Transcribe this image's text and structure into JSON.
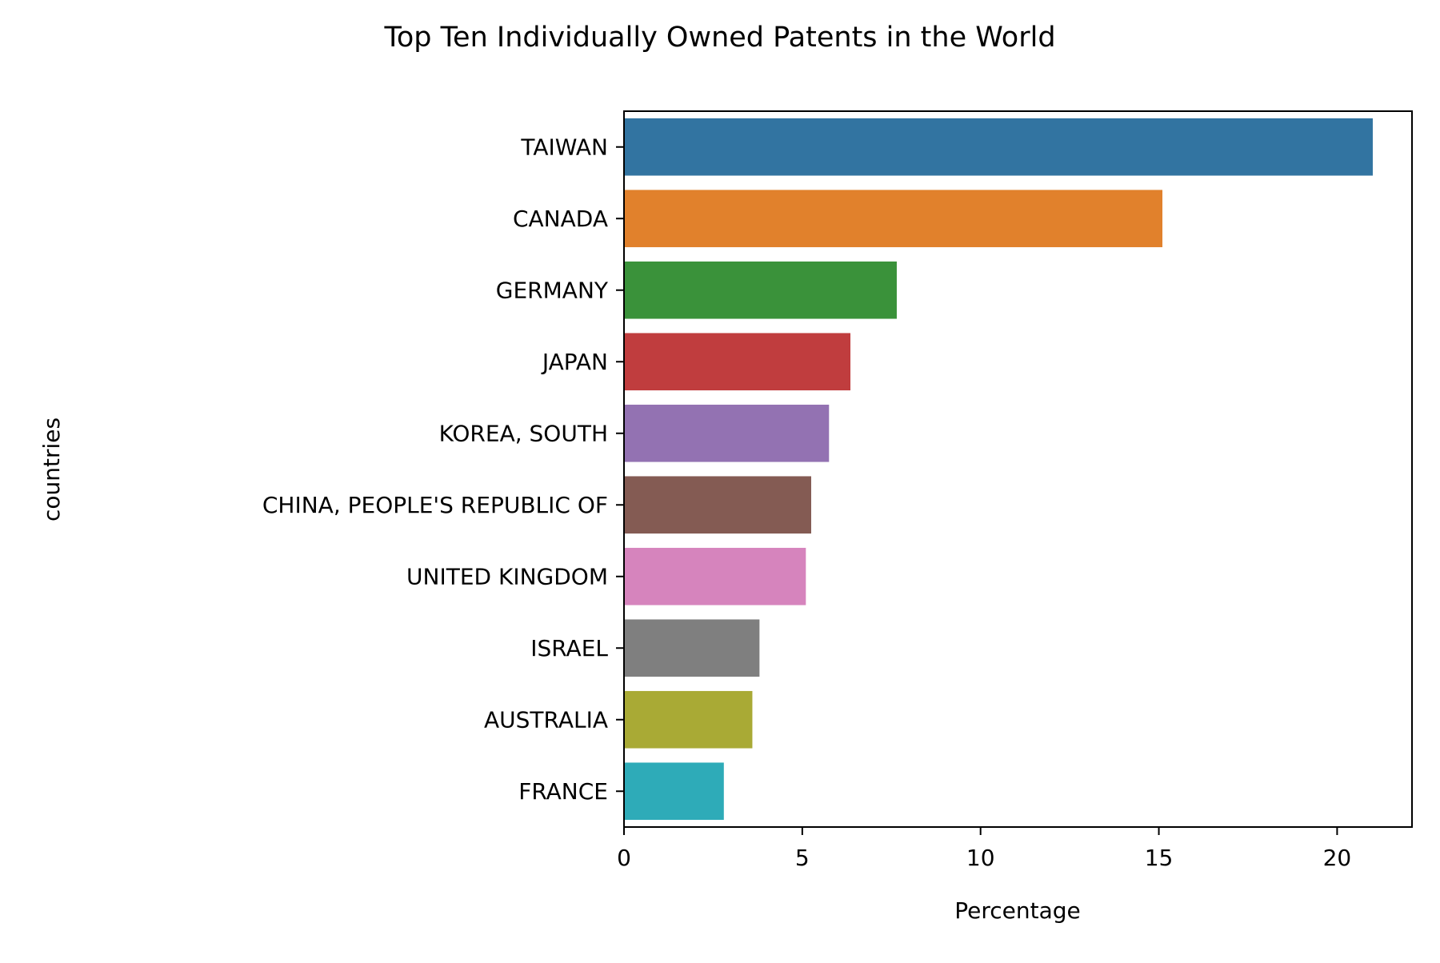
{
  "chart_data": {
    "type": "bar",
    "orientation": "horizontal",
    "title": "Top Ten Individually Owned Patents in the World",
    "xlabel": "Percentage",
    "ylabel": "countries",
    "xlim": [
      0,
      22.1
    ],
    "xticks": [
      0,
      5,
      10,
      15,
      20
    ],
    "grid": false,
    "legend": "none",
    "categories": [
      "TAIWAN",
      "CANADA",
      "GERMANY",
      "JAPAN",
      "KOREA, SOUTH",
      "CHINA, PEOPLE'S REPUBLIC OF",
      "UNITED KINGDOM",
      "ISRAEL",
      "AUSTRALIA",
      "FRANCE"
    ],
    "values": [
      21.0,
      15.1,
      7.65,
      6.35,
      5.75,
      5.25,
      5.1,
      3.8,
      3.6,
      2.8
    ],
    "colors": [
      "#3274a1",
      "#e1812c",
      "#3a923a",
      "#c03d3e",
      "#9372b2",
      "#845b53",
      "#d684bd",
      "#7f7f7f",
      "#a9aa35",
      "#2eabb8"
    ]
  }
}
